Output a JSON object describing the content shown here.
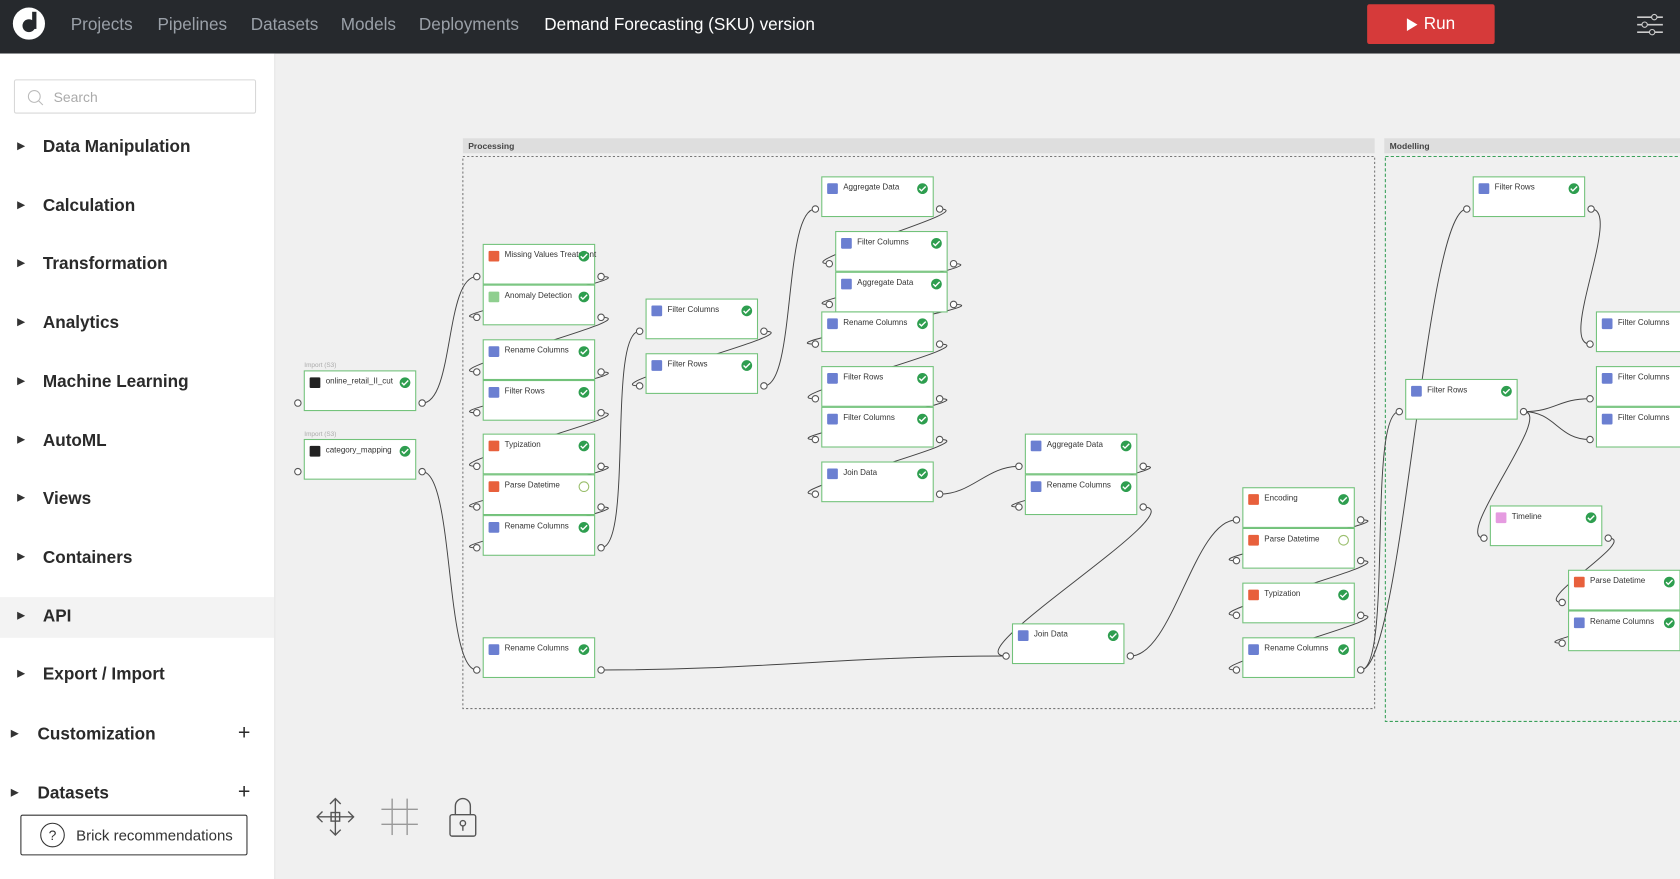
{
  "header": {
    "nav": [
      "Projects",
      "Pipelines",
      "Datasets",
      "Models",
      "Deployments"
    ],
    "title": "Demand Forecasting (SKU) version",
    "run_button": "Run"
  },
  "sidebar": {
    "search_placeholder": "Search",
    "sections": [
      "Data Manipulation",
      "Calculation",
      "Transformation",
      "Analytics",
      "Machine Learning",
      "AutoML",
      "Views",
      "Containers",
      "API",
      "Export / Import"
    ],
    "groups": [
      "Customization",
      "Datasets"
    ],
    "recommendations": "Brick recommendations"
  },
  "canvas": {
    "groups": [
      "Processing",
      "Modelling"
    ],
    "nodes": [
      {
        "label": "online_retail_II_cut",
        "tag": "Import (S3)",
        "color": "#222222",
        "status": "ok"
      },
      {
        "label": "category_mapping",
        "tag": "Import (S3)",
        "color": "#222222",
        "status": "ok"
      },
      {
        "label": "Missing Values Treatment",
        "color": "#e8603c",
        "status": "ok"
      },
      {
        "label": "Anomaly Detection",
        "color": "#8fcf8f",
        "status": "ok"
      },
      {
        "label": "Rename Columns",
        "color": "#6b7fd1",
        "status": "ok"
      },
      {
        "label": "Filter Rows",
        "color": "#6b7fd1",
        "status": "ok"
      },
      {
        "label": "Typization",
        "color": "#e8603c",
        "status": "ok"
      },
      {
        "label": "Parse Datetime",
        "color": "#e8603c",
        "status": "warning"
      },
      {
        "label": "Rename Columns",
        "color": "#6b7fd1",
        "status": "ok"
      },
      {
        "label": "Rename Columns",
        "color": "#6b7fd1",
        "status": "ok"
      },
      {
        "label": "Filter Columns",
        "color": "#6b7fd1",
        "status": "ok"
      },
      {
        "label": "Filter Rows",
        "color": "#6b7fd1",
        "status": "ok"
      },
      {
        "label": "Aggregate Data",
        "color": "#6b7fd1",
        "status": "ok"
      },
      {
        "label": "Filter Columns",
        "color": "#6b7fd1",
        "status": "ok"
      },
      {
        "label": "Aggregate Data",
        "color": "#6b7fd1",
        "status": "ok"
      },
      {
        "label": "Rename Columns",
        "color": "#6b7fd1",
        "status": "ok"
      },
      {
        "label": "Filter Rows",
        "color": "#6b7fd1",
        "status": "ok"
      },
      {
        "label": "Filter Columns",
        "color": "#6b7fd1",
        "status": "ok"
      },
      {
        "label": "Join Data",
        "color": "#6b7fd1",
        "status": "ok"
      },
      {
        "label": "Aggregate Data",
        "color": "#6b7fd1",
        "status": "ok"
      },
      {
        "label": "Rename Columns",
        "color": "#6b7fd1",
        "status": "ok"
      },
      {
        "label": "Join Data",
        "color": "#6b7fd1",
        "status": "ok"
      },
      {
        "label": "Encoding",
        "color": "#e8603c",
        "status": "ok"
      },
      {
        "label": "Parse Datetime",
        "color": "#e8603c",
        "status": "warning"
      },
      {
        "label": "Typization",
        "color": "#e8603c",
        "status": "ok"
      },
      {
        "label": "Rename Columns",
        "color": "#6b7fd1",
        "status": "ok"
      },
      {
        "label": "Filter Rows",
        "color": "#6b7fd1",
        "status": "ok"
      },
      {
        "label": "Filter Rows",
        "color": "#6b7fd1",
        "status": "ok"
      },
      {
        "label": "Filter Columns",
        "color": "#6b7fd1",
        "status": "ok"
      },
      {
        "label": "Filter Columns",
        "color": "#6b7fd1",
        "status": "ok"
      },
      {
        "label": "Filter Columns",
        "color": "#6b7fd1",
        "status": "ok"
      },
      {
        "label": "Timeline",
        "color": "#e59be0",
        "status": "ok"
      },
      {
        "label": "Parse Datetime",
        "color": "#e8603c",
        "status": "ok"
      },
      {
        "label": "Rename Columns",
        "color": "#6b7fd1",
        "status": "ok"
      }
    ]
  }
}
